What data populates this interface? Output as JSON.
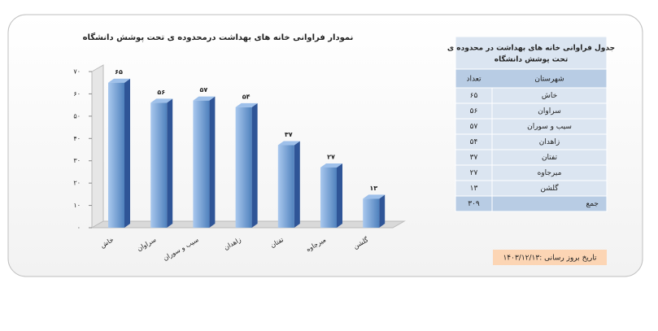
{
  "chart_data": {
    "type": "bar3d",
    "title": "نمودار فراوانی خانه های بهداشت درمحدوده ی تحت پوشش دانشگاه",
    "categories": [
      "خاش",
      "سراوان",
      "سیب و سوران",
      "زاهدان",
      "تفتان",
      "میرجاوه",
      "گلشن"
    ],
    "values": [
      65,
      56,
      57,
      54,
      37,
      27,
      13
    ],
    "value_labels": [
      "۶۵",
      "۵۶",
      "۵۷",
      "۵۴",
      "۳۷",
      "۲۷",
      "۱۳"
    ],
    "color": "#4f81bd",
    "ylim": [
      0,
      70
    ],
    "yticks": [
      {
        "value": 0,
        "label": "۰"
      },
      {
        "value": 10,
        "label": "۱۰"
      },
      {
        "value": 20,
        "label": "۲۰"
      },
      {
        "value": 30,
        "label": "۳۰"
      },
      {
        "value": 40,
        "label": "۴۰"
      },
      {
        "value": 50,
        "label": "۵۰"
      },
      {
        "value": 60,
        "label": "۶۰"
      },
      {
        "value": 70,
        "label": "۷۰"
      }
    ]
  },
  "table": {
    "title": "جدول فراوانی خانه های بهداشت در محدوده ی تحت پوشش دانشگاه",
    "header": [
      "شهرستان",
      "تعداد"
    ],
    "rows": [
      [
        "خاش",
        "۶۵"
      ],
      [
        "سراوان",
        "۵۶"
      ],
      [
        "سیب و سوران",
        "۵۷"
      ],
      [
        "زاهدان",
        "۵۴"
      ],
      [
        "تفتان",
        "۳۷"
      ],
      [
        "میرجاوه",
        "۲۷"
      ],
      [
        "گلشن",
        "۱۳"
      ],
      [
        "جمع",
        "۳۰۹"
      ]
    ]
  },
  "update_note": "تاریخ بروز رسانی :۱۴۰۳/۱۲/۱۳"
}
